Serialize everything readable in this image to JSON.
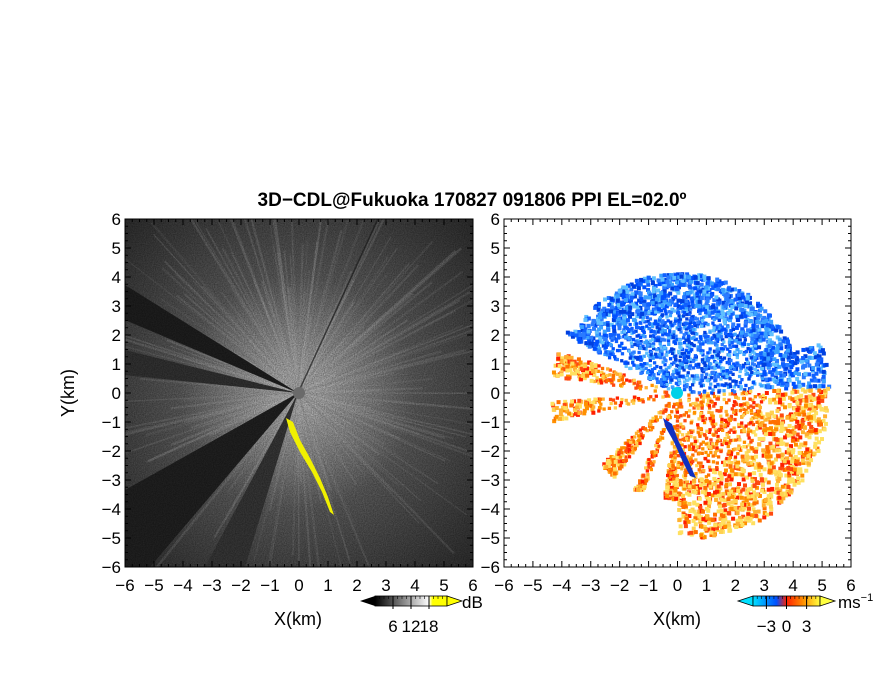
{
  "title": "3D−CDL@Fukuoka 170827 091806 PPI EL=02.0º",
  "chart_data": [
    {
      "type": "heatmap",
      "panel": "reflectivity",
      "xlabel": "X(km)",
      "ylabel": "Y(km)",
      "xlim": [
        -6,
        6
      ],
      "ylim": [
        -6,
        6
      ],
      "xticks": [
        "−6",
        "−5",
        "−4",
        "−3",
        "−2",
        "−1",
        "0",
        "1",
        "2",
        "3",
        "4",
        "5",
        "6"
      ],
      "yticks": [
        "6",
        "5",
        "4",
        "3",
        "2",
        "1",
        "0",
        "−1",
        "−2",
        "−3",
        "−4",
        "−5",
        "−6"
      ],
      "colorbar": {
        "unit": "dB",
        "ticks": [
          "6",
          "12",
          "18"
        ],
        "range": [
          0,
          24
        ],
        "colors": [
          "#000000",
          "#ffffff",
          "#ffff00"
        ]
      }
    },
    {
      "type": "heatmap",
      "panel": "doppler-velocity",
      "xlabel": "X(km)",
      "xlim": [
        -6,
        6
      ],
      "ylim": [
        -6,
        6
      ],
      "xticks": [
        "−6",
        "−5",
        "−4",
        "−3",
        "−2",
        "−1",
        "0",
        "1",
        "2",
        "3",
        "4",
        "5",
        "6"
      ],
      "yticks": [
        "6",
        "5",
        "4",
        "3",
        "2",
        "1",
        "0",
        "−1",
        "−2",
        "−3",
        "−4",
        "−5",
        "−6"
      ],
      "colorbar": {
        "unit": "ms",
        "unit_exp": "−1",
        "ticks": [
          "−3",
          "0",
          "3"
        ],
        "range": [
          -5,
          5
        ],
        "colors": [
          "#00e0ff",
          "#0050ff",
          "#ff2000",
          "#ff9000",
          "#ffff40"
        ]
      }
    }
  ]
}
